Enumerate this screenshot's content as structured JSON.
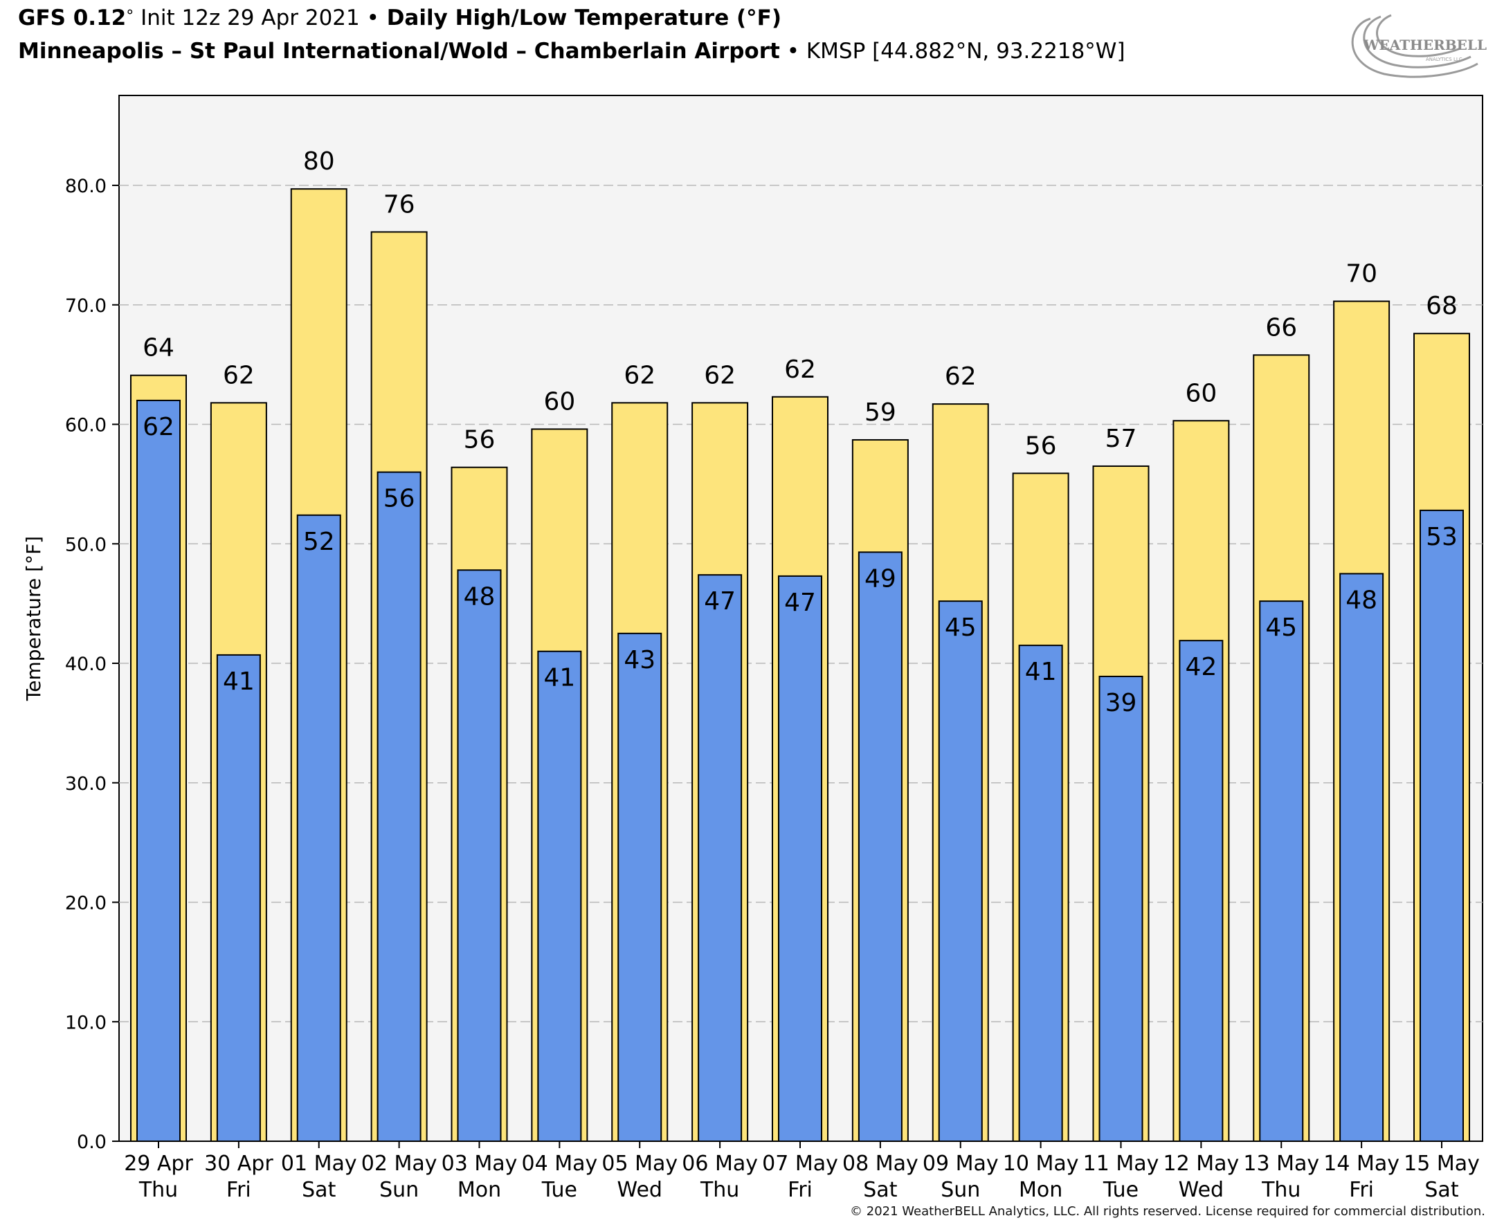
{
  "header": {
    "line1": {
      "model": "GFS 0.12",
      "degree": "°",
      "init": " Init 12z 29 Apr 2021 ",
      "bullet": "•",
      "product": " Daily High/Low Temperature (°F)"
    },
    "line2": {
      "station": "Minneapolis – St Paul International/Wold – Chamberlain Airport",
      "bullet": " • ",
      "code": "KMSP [44.882°N, 93.2218°W]"
    }
  },
  "logo": {
    "text": "WEATHERBELL",
    "sub": "ANALYTICS LLC"
  },
  "copyright": "© 2021 WeatherBELL Analytics, LLC. All rights reserved. License required for commercial distribution.",
  "colors": {
    "high": "#fde47c",
    "low": "#6495e8",
    "plot_bg": "#f4f4f4",
    "grid": "#b8b8b8"
  },
  "chart_data": {
    "type": "bar",
    "ylabel": "Temperature [°F]",
    "ylim": [
      0,
      87
    ],
    "yticks": [
      0,
      10,
      20,
      30,
      40,
      50,
      60,
      70,
      80
    ],
    "ytick_labels": [
      "0.0",
      "10.0",
      "20.0",
      "30.0",
      "40.0",
      "50.0",
      "60.0",
      "70.0",
      "80.0"
    ],
    "grid": true,
    "categories": [
      [
        "29 Apr",
        "Thu"
      ],
      [
        "30 Apr",
        "Fri"
      ],
      [
        "01 May",
        "Sat"
      ],
      [
        "02 May",
        "Sun"
      ],
      [
        "03 May",
        "Mon"
      ],
      [
        "04 May",
        "Tue"
      ],
      [
        "05 May",
        "Wed"
      ],
      [
        "06 May",
        "Thu"
      ],
      [
        "07 May",
        "Fri"
      ],
      [
        "08 May",
        "Sat"
      ],
      [
        "09 May",
        "Sun"
      ],
      [
        "10 May",
        "Mon"
      ],
      [
        "11 May",
        "Tue"
      ],
      [
        "12 May",
        "Wed"
      ],
      [
        "13 May",
        "Thu"
      ],
      [
        "14 May",
        "Fri"
      ],
      [
        "15 May",
        "Sat"
      ]
    ],
    "series": [
      {
        "values": [
          64.1,
          61.8,
          79.7,
          76.1,
          56.4,
          59.6,
          61.8,
          61.8,
          62.3,
          58.7,
          61.7,
          55.9,
          56.5,
          60.3,
          65.8,
          70.3,
          67.6
        ],
        "labels": [
          "64",
          "62",
          "80",
          "76",
          "56",
          "60",
          "62",
          "62",
          "62",
          "59",
          "62",
          "56",
          "57",
          "60",
          "66",
          "70",
          "68"
        ]
      },
      {
        "values": [
          62.0,
          40.7,
          52.4,
          56.0,
          47.8,
          41.0,
          42.5,
          47.4,
          47.3,
          49.3,
          45.2,
          41.5,
          38.9,
          41.9,
          45.2,
          47.5,
          52.8
        ],
        "labels": [
          "62",
          "41",
          "52",
          "56",
          "48",
          "41",
          "43",
          "47",
          "47",
          "49",
          "45",
          "41",
          "39",
          "42",
          "45",
          "48",
          "53"
        ]
      }
    ]
  }
}
